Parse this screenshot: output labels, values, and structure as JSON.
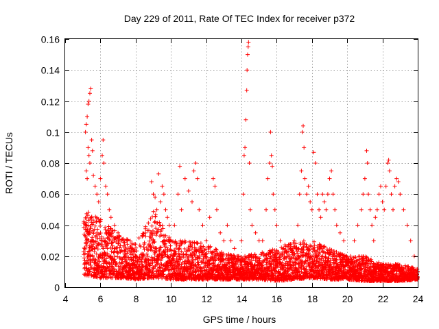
{
  "chart_data": {
    "type": "scatter",
    "title": "Day 229 of 2011, Rate Of TEC Index for receiver p372",
    "xlabel": "GPS time / hours",
    "ylabel": "ROTI / TECUs",
    "xlim": [
      4,
      24
    ],
    "ylim": [
      0,
      0.16
    ],
    "xticks": [
      "4",
      "6",
      "8",
      "10",
      "12",
      "14",
      "16",
      "18",
      "20",
      "22",
      "24"
    ],
    "yticks": [
      "0",
      "0.02",
      "0.04",
      "0.06",
      "0.08",
      "0.1",
      "0.12",
      "0.14",
      "0.16"
    ],
    "grid": true,
    "marker": "plus",
    "color": "#ff0000",
    "points": [
      [
        5.1,
        0.012
      ],
      [
        5.1,
        0.025
      ],
      [
        5.15,
        0.1
      ],
      [
        5.2,
        0.105
      ],
      [
        5.25,
        0.11
      ],
      [
        5.3,
        0.118
      ],
      [
        5.35,
        0.12
      ],
      [
        5.4,
        0.125
      ],
      [
        5.45,
        0.128
      ],
      [
        5.3,
        0.09
      ],
      [
        5.35,
        0.085
      ],
      [
        5.4,
        0.08
      ],
      [
        5.2,
        0.075
      ],
      [
        5.25,
        0.07
      ],
      [
        5.5,
        0.095
      ],
      [
        5.55,
        0.088
      ],
      [
        5.6,
        0.072
      ],
      [
        5.7,
        0.065
      ],
      [
        5.8,
        0.06
      ],
      [
        5.9,
        0.055
      ],
      [
        6.0,
        0.07
      ],
      [
        6.1,
        0.085
      ],
      [
        6.15,
        0.095
      ],
      [
        6.2,
        0.08
      ],
      [
        6.3,
        0.065
      ],
      [
        6.4,
        0.06
      ],
      [
        6.5,
        0.05
      ],
      [
        6.6,
        0.045
      ],
      [
        6.8,
        0.04
      ],
      [
        7.0,
        0.035
      ],
      [
        7.2,
        0.03
      ],
      [
        7.5,
        0.03
      ],
      [
        7.8,
        0.025
      ],
      [
        8.0,
        0.02
      ],
      [
        5.2,
        0.03
      ],
      [
        5.3,
        0.04
      ],
      [
        5.4,
        0.035
      ],
      [
        5.5,
        0.045
      ],
      [
        5.6,
        0.03
      ],
      [
        5.7,
        0.025
      ],
      [
        5.8,
        0.035
      ],
      [
        5.9,
        0.028
      ],
      [
        6.0,
        0.02
      ],
      [
        6.2,
        0.03
      ],
      [
        6.4,
        0.025
      ],
      [
        6.6,
        0.02
      ],
      [
        6.8,
        0.018
      ],
      [
        7.0,
        0.022
      ],
      [
        7.2,
        0.016
      ],
      [
        7.4,
        0.02
      ],
      [
        7.6,
        0.015
      ],
      [
        7.8,
        0.018
      ],
      [
        8.2,
        0.015
      ],
      [
        8.4,
        0.02
      ],
      [
        8.6,
        0.018
      ],
      [
        5.2,
        0.015
      ],
      [
        5.4,
        0.018
      ],
      [
        5.6,
        0.012
      ],
      [
        5.8,
        0.014
      ],
      [
        6.0,
        0.01
      ],
      [
        6.3,
        0.012
      ],
      [
        6.6,
        0.011
      ],
      [
        6.9,
        0.01
      ],
      [
        7.2,
        0.009
      ],
      [
        7.5,
        0.01
      ],
      [
        7.8,
        0.012
      ],
      [
        8.1,
        0.01
      ],
      [
        8.4,
        0.011
      ],
      [
        8.7,
        0.012
      ],
      [
        8.9,
        0.068
      ],
      [
        9.0,
        0.06
      ],
      [
        9.1,
        0.058
      ],
      [
        9.2,
        0.05
      ],
      [
        9.3,
        0.073
      ],
      [
        9.4,
        0.055
      ],
      [
        9.5,
        0.065
      ],
      [
        9.6,
        0.06
      ],
      [
        9.7,
        0.05
      ],
      [
        9.8,
        0.045
      ],
      [
        9.9,
        0.04
      ],
      [
        9.0,
        0.03
      ],
      [
        9.1,
        0.025
      ],
      [
        9.2,
        0.035
      ],
      [
        9.3,
        0.02
      ],
      [
        9.4,
        0.04
      ],
      [
        9.6,
        0.03
      ],
      [
        9.8,
        0.02
      ],
      [
        10.0,
        0.03
      ],
      [
        10.2,
        0.04
      ],
      [
        10.4,
        0.06
      ],
      [
        10.5,
        0.078
      ],
      [
        10.6,
        0.05
      ],
      [
        10.8,
        0.07
      ],
      [
        11.0,
        0.062
      ],
      [
        11.2,
        0.055
      ],
      [
        11.3,
        0.075
      ],
      [
        11.4,
        0.08
      ],
      [
        11.5,
        0.07
      ],
      [
        11.6,
        0.05
      ],
      [
        11.8,
        0.04
      ],
      [
        12.0,
        0.03
      ],
      [
        12.2,
        0.045
      ],
      [
        12.4,
        0.07
      ],
      [
        12.5,
        0.065
      ],
      [
        12.6,
        0.05
      ],
      [
        12.8,
        0.035
      ],
      [
        13.0,
        0.03
      ],
      [
        13.2,
        0.04
      ],
      [
        13.4,
        0.03
      ],
      [
        13.6,
        0.025
      ],
      [
        13.8,
        0.02
      ],
      [
        9.0,
        0.012
      ],
      [
        9.3,
        0.01
      ],
      [
        9.6,
        0.014
      ],
      [
        9.9,
        0.008
      ],
      [
        10.2,
        0.01
      ],
      [
        10.5,
        0.012
      ],
      [
        10.8,
        0.009
      ],
      [
        11.1,
        0.011
      ],
      [
        11.4,
        0.01
      ],
      [
        11.7,
        0.012
      ],
      [
        12.0,
        0.008
      ],
      [
        12.3,
        0.01
      ],
      [
        12.6,
        0.012
      ],
      [
        12.9,
        0.009
      ],
      [
        13.2,
        0.011
      ],
      [
        13.5,
        0.01
      ],
      [
        13.8,
        0.012
      ],
      [
        14.0,
        0.03
      ],
      [
        14.1,
        0.06
      ],
      [
        14.15,
        0.085
      ],
      [
        14.2,
        0.09
      ],
      [
        14.25,
        0.108
      ],
      [
        14.3,
        0.127
      ],
      [
        14.32,
        0.14
      ],
      [
        14.35,
        0.15
      ],
      [
        14.38,
        0.155
      ],
      [
        14.4,
        0.158
      ],
      [
        14.45,
        0.08
      ],
      [
        14.5,
        0.05
      ],
      [
        14.6,
        0.04
      ],
      [
        14.8,
        0.035
      ],
      [
        15.0,
        0.03
      ],
      [
        14.2,
        0.02
      ],
      [
        14.4,
        0.015
      ],
      [
        14.6,
        0.012
      ],
      [
        14.8,
        0.01
      ],
      [
        15.0,
        0.012
      ],
      [
        15.2,
        0.03
      ],
      [
        15.4,
        0.05
      ],
      [
        15.5,
        0.07
      ],
      [
        15.6,
        0.08
      ],
      [
        15.7,
        0.085
      ],
      [
        15.65,
        0.1
      ],
      [
        15.75,
        0.078
      ],
      [
        15.8,
        0.06
      ],
      [
        15.9,
        0.05
      ],
      [
        16.0,
        0.04
      ],
      [
        16.2,
        0.03
      ],
      [
        16.4,
        0.025
      ],
      [
        16.6,
        0.02
      ],
      [
        16.8,
        0.025
      ],
      [
        17.0,
        0.03
      ],
      [
        15.3,
        0.012
      ],
      [
        15.6,
        0.01
      ],
      [
        15.9,
        0.012
      ],
      [
        16.2,
        0.009
      ],
      [
        16.5,
        0.01
      ],
      [
        16.8,
        0.012
      ],
      [
        17.1,
        0.01
      ],
      [
        17.2,
        0.04
      ],
      [
        17.3,
        0.06
      ],
      [
        17.4,
        0.075
      ],
      [
        17.45,
        0.1
      ],
      [
        17.5,
        0.104
      ],
      [
        17.55,
        0.09
      ],
      [
        17.6,
        0.07
      ],
      [
        17.7,
        0.06
      ],
      [
        17.8,
        0.065
      ],
      [
        17.9,
        0.055
      ],
      [
        18.0,
        0.05
      ],
      [
        18.1,
        0.087
      ],
      [
        18.2,
        0.08
      ],
      [
        18.3,
        0.06
      ],
      [
        18.4,
        0.05
      ],
      [
        18.5,
        0.045
      ],
      [
        18.6,
        0.06
      ],
      [
        18.7,
        0.055
      ],
      [
        18.8,
        0.05
      ],
      [
        18.9,
        0.06
      ],
      [
        19.0,
        0.07
      ],
      [
        19.1,
        0.075
      ],
      [
        19.2,
        0.06
      ],
      [
        19.3,
        0.05
      ],
      [
        19.4,
        0.04
      ],
      [
        19.6,
        0.035
      ],
      [
        19.8,
        0.03
      ],
      [
        17.4,
        0.012
      ],
      [
        17.8,
        0.015
      ],
      [
        18.2,
        0.02
      ],
      [
        18.6,
        0.015
      ],
      [
        19.0,
        0.01
      ],
      [
        19.4,
        0.012
      ],
      [
        19.8,
        0.01
      ],
      [
        20.0,
        0.015
      ],
      [
        20.2,
        0.02
      ],
      [
        20.4,
        0.03
      ],
      [
        20.6,
        0.04
      ],
      [
        20.8,
        0.05
      ],
      [
        20.9,
        0.06
      ],
      [
        21.0,
        0.07
      ],
      [
        21.1,
        0.088
      ],
      [
        21.15,
        0.08
      ],
      [
        21.2,
        0.06
      ],
      [
        21.3,
        0.05
      ],
      [
        21.4,
        0.04
      ],
      [
        21.5,
        0.03
      ],
      [
        21.6,
        0.045
      ],
      [
        21.7,
        0.05
      ],
      [
        21.8,
        0.06
      ],
      [
        21.9,
        0.065
      ],
      [
        22.0,
        0.055
      ],
      [
        22.1,
        0.05
      ],
      [
        22.2,
        0.065
      ],
      [
        22.3,
        0.08
      ],
      [
        22.35,
        0.082
      ],
      [
        22.4,
        0.075
      ],
      [
        22.5,
        0.06
      ],
      [
        22.6,
        0.05
      ],
      [
        22.7,
        0.065
      ],
      [
        22.8,
        0.07
      ],
      [
        22.9,
        0.068
      ],
      [
        23.0,
        0.06
      ],
      [
        23.2,
        0.05
      ],
      [
        23.4,
        0.04
      ],
      [
        23.6,
        0.03
      ],
      [
        23.8,
        0.02
      ],
      [
        24.0,
        0.01
      ],
      [
        20.2,
        0.008
      ],
      [
        20.6,
        0.01
      ],
      [
        21.0,
        0.009
      ],
      [
        21.4,
        0.01
      ],
      [
        21.8,
        0.008
      ],
      [
        22.2,
        0.009
      ],
      [
        22.6,
        0.01
      ],
      [
        23.0,
        0.008
      ],
      [
        23.4,
        0.009
      ],
      [
        23.8,
        0.01
      ]
    ],
    "dense_band": [
      [
        5.0,
        0.008,
        0.05
      ],
      [
        6.0,
        0.006,
        0.045
      ],
      [
        7.0,
        0.006,
        0.035
      ],
      [
        8.0,
        0.005,
        0.028
      ],
      [
        9.0,
        0.006,
        0.05
      ],
      [
        10.0,
        0.005,
        0.03
      ],
      [
        11.0,
        0.005,
        0.03
      ],
      [
        12.0,
        0.005,
        0.028
      ],
      [
        13.0,
        0.005,
        0.022
      ],
      [
        14.0,
        0.005,
        0.02
      ],
      [
        15.0,
        0.005,
        0.022
      ],
      [
        16.0,
        0.004,
        0.025
      ],
      [
        17.0,
        0.005,
        0.03
      ],
      [
        18.0,
        0.006,
        0.03
      ],
      [
        19.0,
        0.005,
        0.025
      ],
      [
        20.0,
        0.005,
        0.02
      ],
      [
        21.0,
        0.004,
        0.02
      ],
      [
        22.0,
        0.004,
        0.015
      ],
      [
        23.0,
        0.004,
        0.015
      ],
      [
        24.0,
        0.005,
        0.012
      ]
    ]
  }
}
